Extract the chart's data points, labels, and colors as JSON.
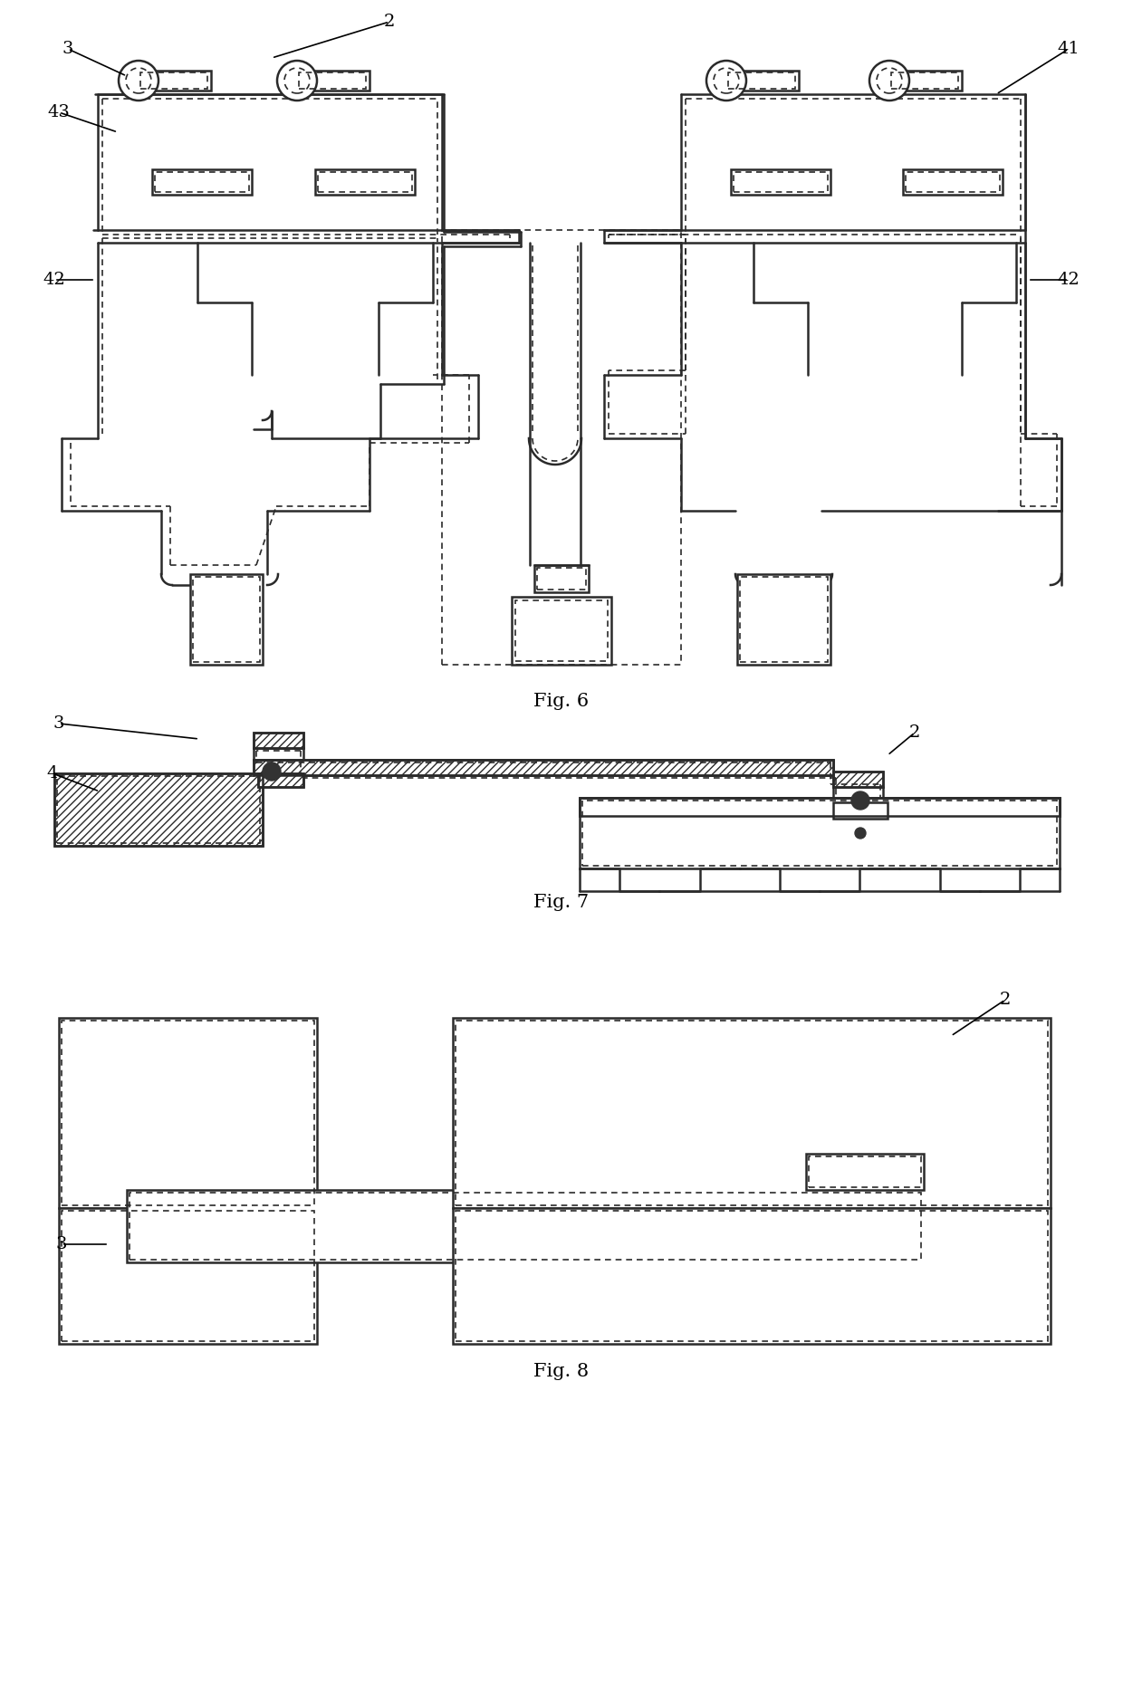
{
  "bg_color": "#ffffff",
  "line_color": "#2a2a2a",
  "dash_color": "#2a2a2a",
  "lw_solid": 1.8,
  "lw_dash": 1.2,
  "fig6_label": "Fig. 6",
  "fig7_label": "Fig. 7",
  "fig8_label": "Fig. 8",
  "fontsize_label": 15,
  "fontsize_ref": 14
}
